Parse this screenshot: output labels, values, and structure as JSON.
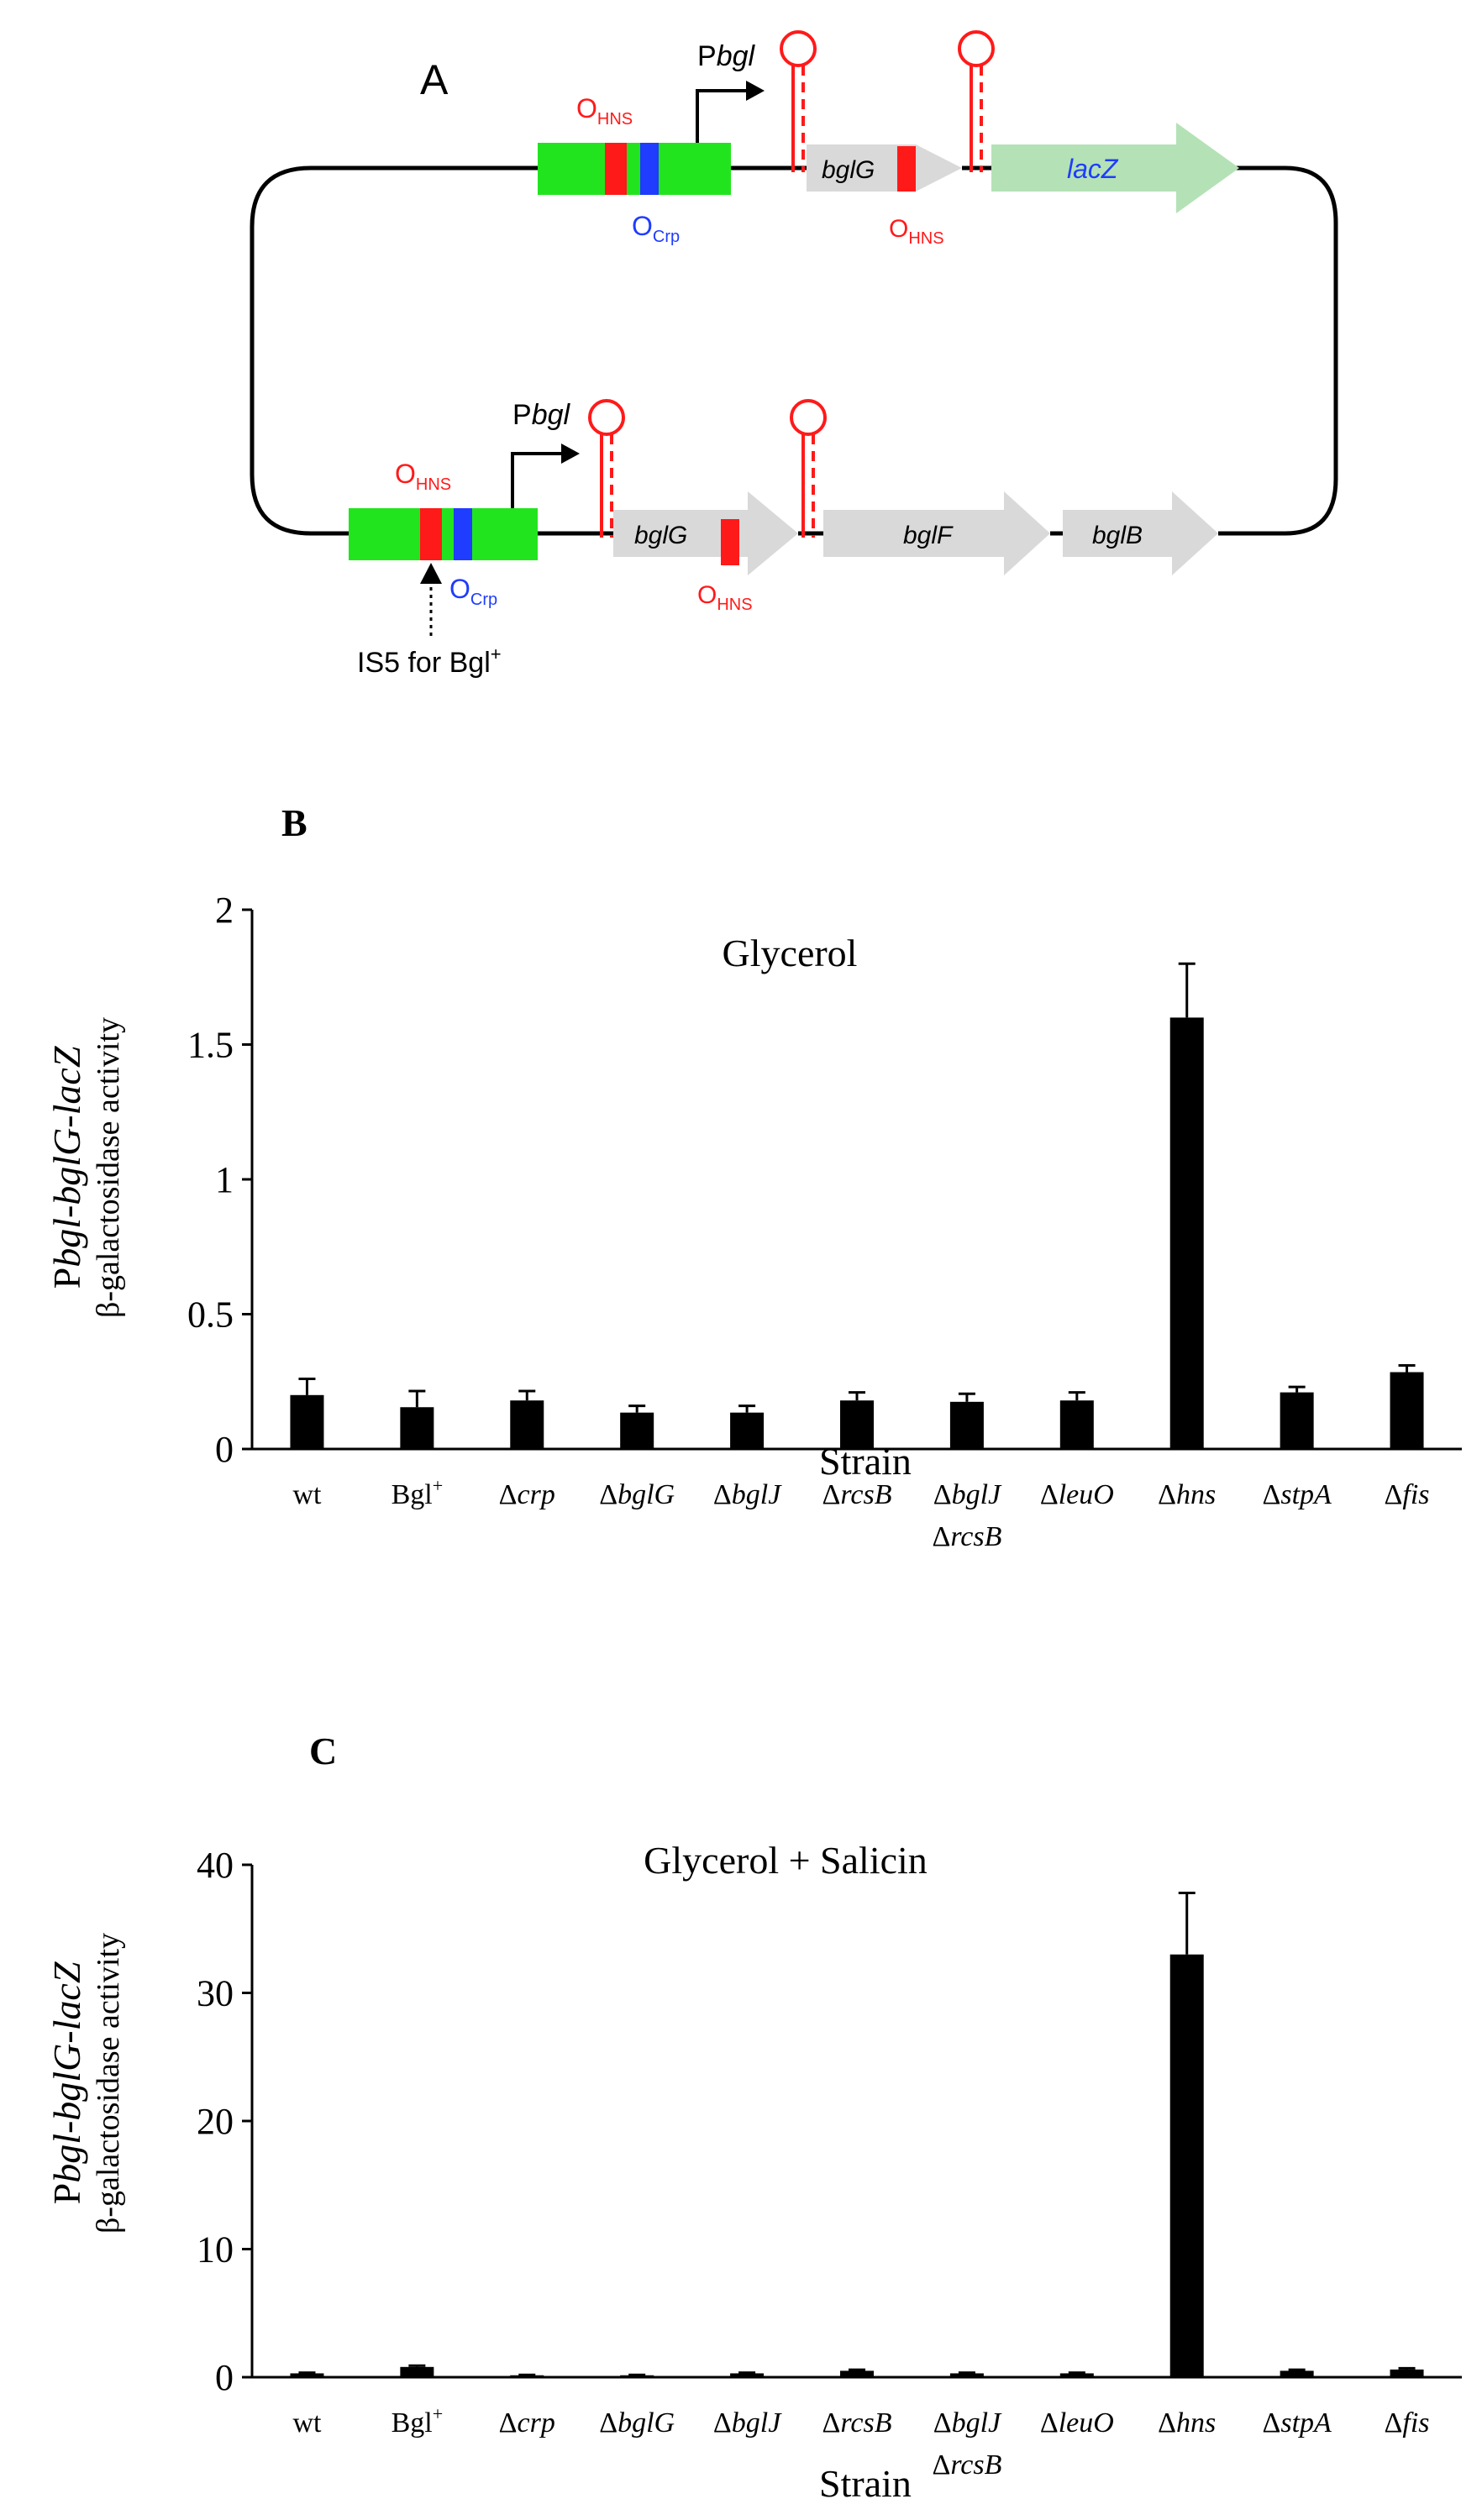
{
  "diagram": {
    "panel_label": "A",
    "promoter_label_top": "Pbgl",
    "promoter_label_bottom": "Pbgl",
    "o_hns": "O",
    "o_hns_sub": "HNS",
    "o_crp": "O",
    "o_crp_sub": "Crp",
    "genes_top": {
      "bglG": "bglG",
      "lacZ": "lacZ"
    },
    "genes_bottom": {
      "bglG": "bglG",
      "bglF": "bglF",
      "bglB": "bglB"
    },
    "is5_label": "IS5 for Bgl",
    "is5_sup": "+",
    "colors": {
      "box": "#22e41e",
      "ohns": "#ff1a1a",
      "ocrp": "#1f3cff",
      "gene": "#d9d9d9",
      "lacz": "#b4e2b6",
      "lacz_text": "#1f3cff",
      "hairpin": "#ff1a1a"
    }
  },
  "chart_data": [
    {
      "type": "bar",
      "panel_label": "B",
      "title": "Glycerol",
      "xlabel": "Strain",
      "ylabel_line1_prefix": "P",
      "ylabel_line1_italic": "bgl-bglG-lacZ",
      "ylabel_line2": "β-galactosidase activity",
      "ylim": [
        0,
        2
      ],
      "yticks": [
        0,
        0.5,
        1,
        1.5,
        2
      ],
      "ytick_labels": [
        "0",
        "0.5",
        "1",
        "1.5",
        "2"
      ],
      "categories": [
        "wt",
        "Bgl+",
        "Δcrp",
        "ΔbglG",
        "ΔbglJ",
        "ΔrcsB",
        "ΔbglJ ΔrcsB",
        "ΔleuO",
        "Δhns",
        "ΔstpA",
        "Δfis"
      ],
      "values": [
        0.2,
        0.155,
        0.18,
        0.135,
        0.135,
        0.18,
        0.175,
        0.18,
        1.6,
        0.21,
        0.285
      ],
      "errors": [
        0.06,
        0.06,
        0.035,
        0.025,
        0.025,
        0.03,
        0.03,
        0.03,
        0.2,
        0.02,
        0.025
      ]
    },
    {
      "type": "bar",
      "panel_label": "C",
      "title": "Glycerol + Salicin",
      "xlabel": "Strain",
      "ylabel_line1_prefix": "P",
      "ylabel_line1_italic": "bgl-bglG-lacZ",
      "ylabel_line2": "β-galactosidase activity",
      "ylim": [
        0,
        40
      ],
      "yticks": [
        0,
        10,
        20,
        30,
        40
      ],
      "ytick_labels": [
        "0",
        "10",
        "20",
        "30",
        "40"
      ],
      "categories": [
        "wt",
        "Bgl+",
        "Δcrp",
        "ΔbglG",
        "ΔbglJ",
        "ΔrcsB",
        "ΔbglJ ΔrcsB",
        "ΔleuO",
        "Δhns",
        "ΔstpA",
        "Δfis"
      ],
      "values": [
        0.3,
        0.8,
        0.15,
        0.15,
        0.3,
        0.5,
        0.3,
        0.3,
        33,
        0.5,
        0.6
      ],
      "errors": [
        0.05,
        0.1,
        0.03,
        0.03,
        0.05,
        0.08,
        0.05,
        0.05,
        4.8,
        0.08,
        0.1
      ]
    }
  ]
}
